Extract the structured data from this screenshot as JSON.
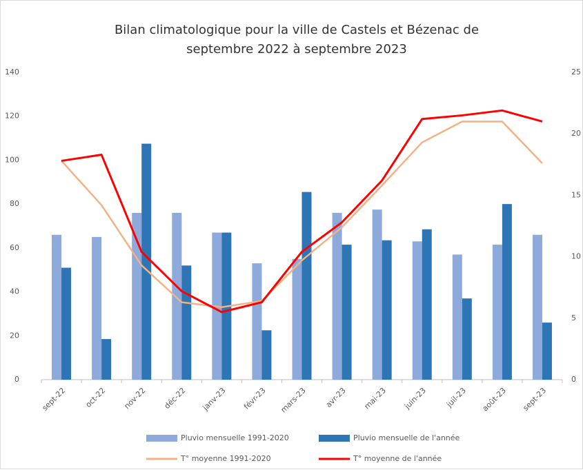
{
  "chart_data": {
    "type": "bar-line",
    "title": [
      "Bilan climatologique pour la ville de Castels et Bézenac de",
      "septembre 2022 à septembre 2023"
    ],
    "categories": [
      "sept-22",
      "oct-22",
      "nov-22",
      "déc-22",
      "janv-23",
      "févr-23",
      "mars-23",
      "avr-23",
      "mai-23",
      "juin-23",
      "juil-23",
      "août-23",
      "sept-23"
    ],
    "series": [
      {
        "name": "Pluvio mensuelle 1991-2020",
        "kind": "bar",
        "color": "#8eaadb",
        "values": [
          66,
          65,
          76,
          76,
          67,
          53,
          55,
          76,
          77.5,
          63,
          57,
          61.5,
          66
        ]
      },
      {
        "name": "Pluvio mensuelle de l'année",
        "kind": "bar",
        "color": "#2e75b6",
        "values": [
          51,
          18.5,
          107.5,
          52,
          67,
          22.5,
          85.5,
          61.5,
          63.5,
          68.5,
          37,
          80,
          26
        ]
      },
      {
        "name": "T° moyenne 1991-2020",
        "kind": "line",
        "axis": "y2",
        "color": "#f4b183",
        "values": [
          17.8,
          14.2,
          9.3,
          6.3,
          5.9,
          6.4,
          9.7,
          12.4,
          15.8,
          19.3,
          21.0,
          21.0,
          17.6
        ]
      },
      {
        "name": "T° moyenne de l'année",
        "kind": "line",
        "axis": "y2",
        "color": "#ff0000",
        "values": [
          17.8,
          18.3,
          10.4,
          7.2,
          5.5,
          6.3,
          10.4,
          12.8,
          16.2,
          21.2,
          21.5,
          21.9,
          21.0
        ]
      }
    ],
    "ylim": [
      0,
      140
    ],
    "yticks": [
      0,
      20,
      40,
      60,
      80,
      100,
      120,
      140
    ],
    "y2lim": [
      0,
      25
    ],
    "y2ticks": [
      0,
      5,
      10,
      15,
      20,
      25
    ],
    "grid": false
  }
}
